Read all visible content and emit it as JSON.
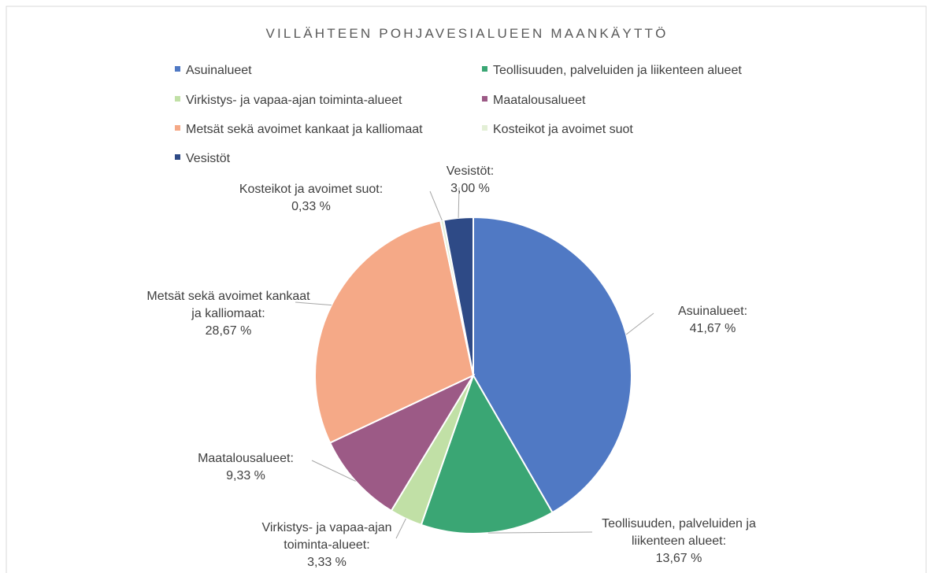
{
  "chart_data": {
    "type": "pie",
    "title": "VILLÄHTEEN POHJAVESIALUEEN MAANKÄYTTÖ",
    "categories": [
      "Asuinalueet",
      "Teollisuuden, palveluiden ja liikenteen alueet",
      "Virkistys- ja vapaa-ajan toiminta-alueet",
      "Maatalousalueet",
      "Metsät sekä avoimet kankaat ja kalliomaat",
      "Kosteikot ja avoimet suot",
      "Vesistöt"
    ],
    "values": [
      41.67,
      13.67,
      3.33,
      9.33,
      28.67,
      0.33,
      3.0
    ],
    "value_labels": [
      "41,67 %",
      "13,67 %",
      "3,33 %",
      "9,33 %",
      "28,67 %",
      "0,33 %",
      "3,00 %"
    ],
    "label_separator": ":",
    "colors": [
      "#5079c4",
      "#3aa674",
      "#c1e0a6",
      "#9c5a86",
      "#f5a987",
      "#e3efd6",
      "#2e4a86"
    ],
    "legend": "top"
  }
}
